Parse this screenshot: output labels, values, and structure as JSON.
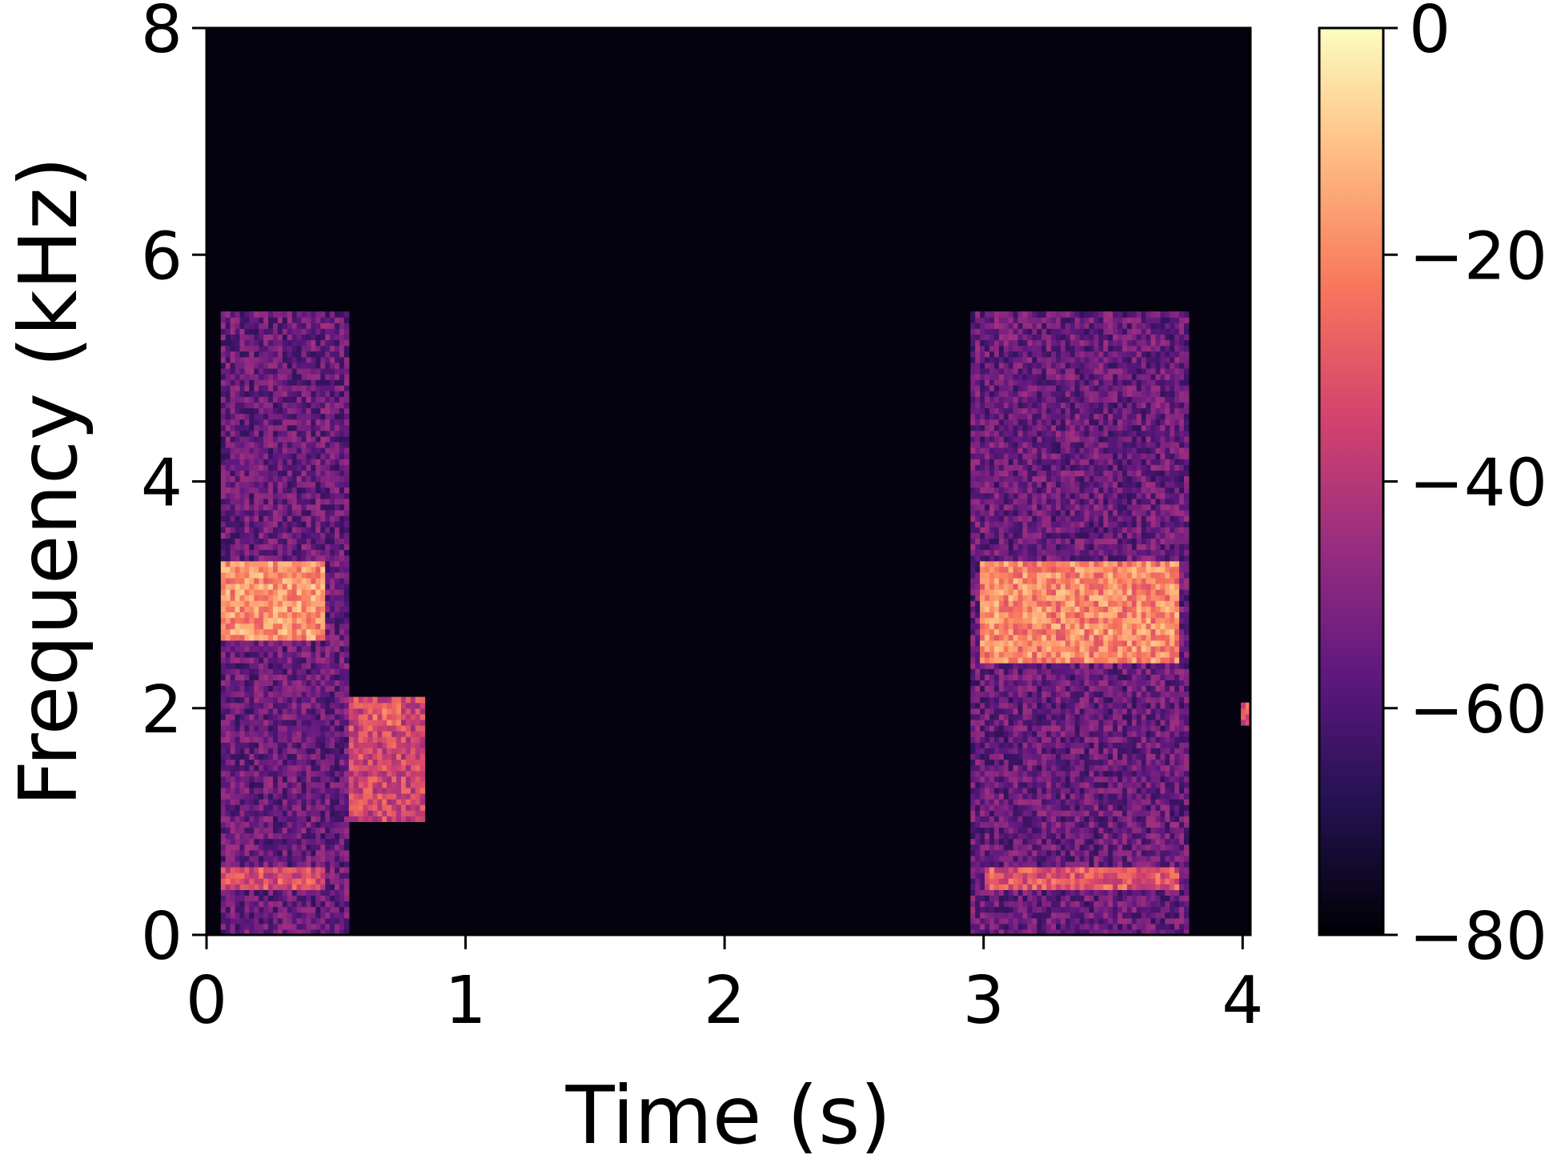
{
  "chart_data": {
    "type": "heatmap",
    "title": "",
    "xlabel": "Time (s)",
    "ylabel": "Frequency (kHz)",
    "xlim": [
      0,
      4.03
    ],
    "ylim": [
      0,
      8
    ],
    "xticks": [
      0,
      1,
      2,
      3,
      4
    ],
    "yticks": [
      0,
      2,
      4,
      6,
      8
    ],
    "xtick_labels": [
      "0",
      "1",
      "2",
      "3",
      "4"
    ],
    "ytick_labels": [
      "0",
      "2",
      "4",
      "6",
      "8"
    ],
    "grid": false,
    "colormap": "magma",
    "colormap_stops": [
      "#000004",
      "#221150",
      "#5f187f",
      "#982d80",
      "#d3436e",
      "#f8765c",
      "#febb81",
      "#fcfdbf"
    ],
    "colorbar": {
      "label": "",
      "range": [
        -80,
        0
      ],
      "ticks": [
        0,
        -20,
        -40,
        -60,
        -80
      ],
      "tick_labels": [
        "0",
        "−20",
        "−40",
        "−60",
        "−80"
      ]
    },
    "regions": [
      {
        "t": [
          0.05,
          0.55
        ],
        "f": [
          0.0,
          5.5
        ],
        "level_db": -55
      },
      {
        "t": [
          0.05,
          0.45
        ],
        "f": [
          2.6,
          3.3
        ],
        "level_db": -18
      },
      {
        "t": [
          0.05,
          0.45
        ],
        "f": [
          0.4,
          0.6
        ],
        "level_db": -32
      },
      {
        "t": [
          0.55,
          0.85
        ],
        "f": [
          1.0,
          2.1
        ],
        "level_db": -35
      },
      {
        "t": [
          0.6,
          0.75
        ],
        "f": [
          1.85,
          2.05
        ],
        "level_db": -28
      },
      {
        "t": [
          2.95,
          3.8
        ],
        "f": [
          0.0,
          5.5
        ],
        "level_db": -55
      },
      {
        "t": [
          2.98,
          3.75
        ],
        "f": [
          2.4,
          3.3
        ],
        "level_db": -20
      },
      {
        "t": [
          3.0,
          3.75
        ],
        "f": [
          0.4,
          0.6
        ],
        "level_db": -30
      },
      {
        "t": [
          4.0,
          4.03
        ],
        "f": [
          1.85,
          2.05
        ],
        "level_db": -30
      }
    ]
  }
}
